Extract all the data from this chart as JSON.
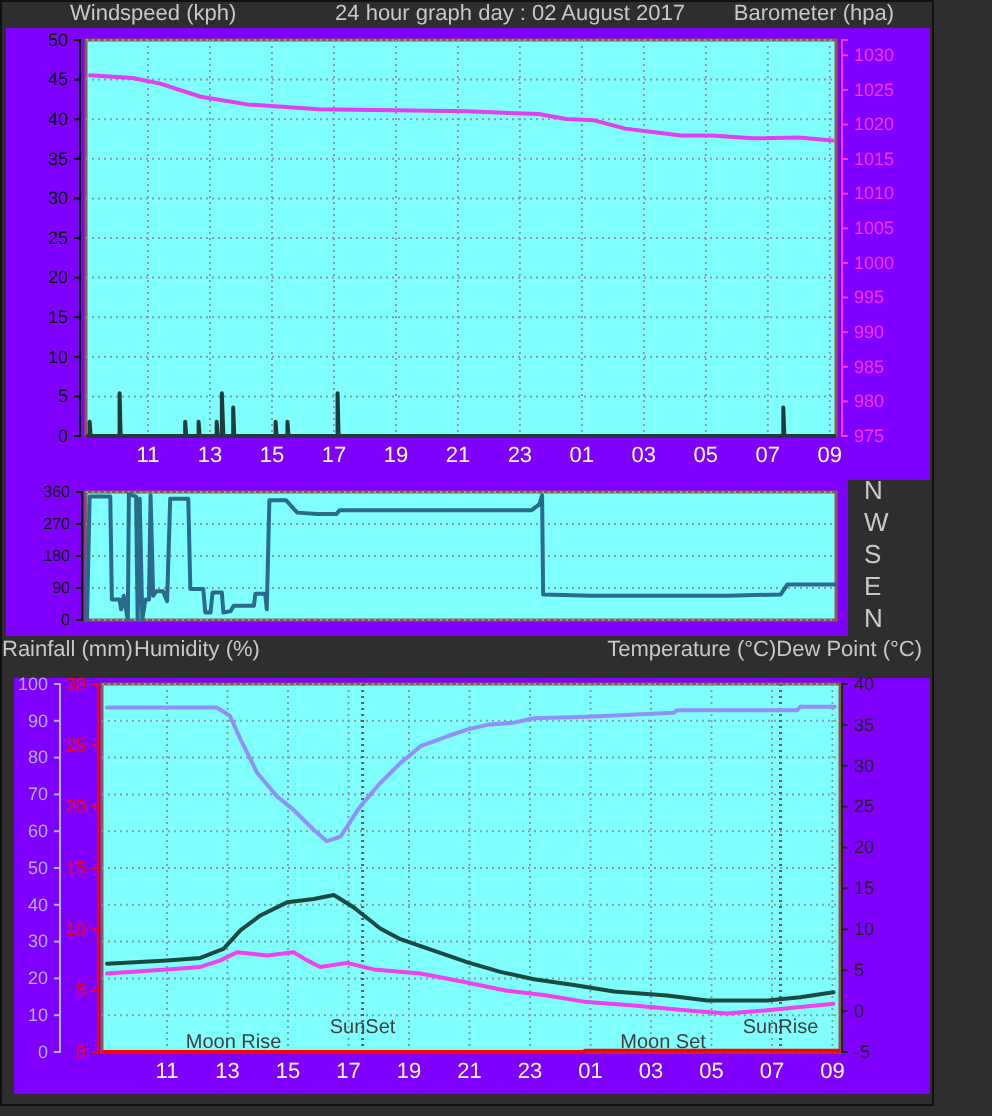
{
  "chart_data": [
    {
      "type": "line",
      "title": "24 hour graph day : 02 August 2017",
      "ylabel": "Windspeed (kph)",
      "y2label": "Barometer (hpa)",
      "xlim": [
        "2017-08-02T09:00",
        "2017-08-03T09:12"
      ],
      "xticks": [
        {
          "value": "2017-08-02T11:00",
          "label": "11"
        },
        {
          "value": "2017-08-02T13:00",
          "label": "13"
        },
        {
          "value": "2017-08-02T15:00",
          "label": "15"
        },
        {
          "value": "2017-08-02T17:00",
          "label": "17"
        },
        {
          "value": "2017-08-02T19:00",
          "label": "19"
        },
        {
          "value": "2017-08-02T21:00",
          "label": "21"
        },
        {
          "value": "2017-08-02T23:00",
          "label": "23"
        },
        {
          "value": "2017-08-03T01:00",
          "label": "01"
        },
        {
          "value": "2017-08-03T03:00",
          "label": "03"
        },
        {
          "value": "2017-08-03T05:00",
          "label": "05"
        },
        {
          "value": "2017-08-03T07:00",
          "label": "07"
        },
        {
          "value": "2017-08-03T09:00",
          "label": "09"
        }
      ],
      "ylim": [
        0,
        50
      ],
      "yticks": [
        0,
        5,
        10,
        15,
        20,
        25,
        30,
        35,
        40,
        45,
        50
      ],
      "y2lim": [
        975,
        1032.2
      ],
      "y2ticks": [
        975,
        980,
        985,
        990,
        995,
        1000,
        1005,
        1010,
        1015,
        1020,
        1025,
        1030
      ],
      "grid": true,
      "series": [
        {
          "color": "#1e3c3c",
          "x": [
            "2017-08-02T09:03",
            "2017-08-02T09:07",
            "2017-08-02T09:07",
            "2017-08-02T09:09",
            "2017-08-02T10:05",
            "2017-08-02T10:05",
            "2017-08-02T10:07",
            "2017-08-02T12:12",
            "2017-08-02T12:12",
            "2017-08-02T12:14",
            "2017-08-02T12:38",
            "2017-08-02T12:38",
            "2017-08-02T12:40",
            "2017-08-02T13:13",
            "2017-08-02T13:13",
            "2017-08-02T13:15",
            "2017-08-02T13:23",
            "2017-08-02T13:23",
            "2017-08-02T13:26",
            "2017-08-02T13:45",
            "2017-08-02T13:45",
            "2017-08-02T13:47",
            "2017-08-02T15:07",
            "2017-08-02T15:07",
            "2017-08-02T15:09",
            "2017-08-02T15:30",
            "2017-08-02T15:30",
            "2017-08-02T15:32",
            "2017-08-02T17:07",
            "2017-08-02T17:07",
            "2017-08-02T17:09",
            "2017-08-03T07:30",
            "2017-08-03T07:30",
            "2017-08-03T07:32",
            "2017-08-03T09:09"
          ],
          "values": [
            0,
            0,
            1.8,
            0,
            0,
            5.4,
            0,
            0,
            1.8,
            0,
            0,
            1.8,
            0,
            0,
            1.8,
            0,
            0,
            5.4,
            0,
            0,
            3.6,
            0,
            0,
            1.8,
            0,
            0,
            1.8,
            0,
            0,
            5.4,
            0,
            0,
            3.6,
            0,
            0
          ]
        },
        {
          "color": "#e040f0",
          "axis": "y2",
          "x": [
            "2017-08-02T09:08",
            "2017-08-02T10:30",
            "2017-08-02T11:24",
            "2017-08-02T12:42",
            "2017-08-02T14:12",
            "2017-08-02T16:30",
            "2017-08-02T21:18",
            "2017-08-02T23:36",
            "2017-08-03T00:30",
            "2017-08-03T01:24",
            "2017-08-03T02:24",
            "2017-08-03T04:12",
            "2017-08-03T05:12",
            "2017-08-03T06:30",
            "2017-08-03T08:00",
            "2017-08-03T09:06"
          ],
          "values": [
            1027.1,
            1026.7,
            1025.9,
            1024.0,
            1022.9,
            1022.2,
            1021.9,
            1021.5,
            1020.8,
            1020.6,
            1019.4,
            1018.4,
            1018.4,
            1018.0,
            1018.1,
            1017.7
          ]
        }
      ]
    },
    {
      "type": "line",
      "xlim": [
        "2017-08-02T09:00",
        "2017-08-03T09:12"
      ],
      "ylim": [
        0,
        360
      ],
      "yticks": [
        0,
        90,
        180,
        270,
        360
      ],
      "y2_categories": [
        "N",
        "W",
        "S",
        "E",
        "N"
      ],
      "tick_labels": "y",
      "grid": "y",
      "series": [
        {
          "color": "#2a6a8c",
          "x": [
            "2017-08-02T09:02",
            "2017-08-02T09:07",
            "2017-08-02T09:47",
            "2017-08-02T09:50",
            "2017-08-02T10:05",
            "2017-08-02T10:08",
            "2017-08-02T10:13",
            "2017-08-02T10:21",
            "2017-08-02T10:23",
            "2017-08-02T10:37",
            "2017-08-02T10:40",
            "2017-08-02T10:44",
            "2017-08-02T10:49",
            "2017-08-02T10:55",
            "2017-08-02T11:02",
            "2017-08-02T11:05",
            "2017-08-02T11:10",
            "2017-08-02T11:16",
            "2017-08-02T11:29",
            "2017-08-02T11:37",
            "2017-08-02T11:43",
            "2017-08-02T12:18",
            "2017-08-02T12:22",
            "2017-08-02T12:47",
            "2017-08-02T12:51",
            "2017-08-02T13:01",
            "2017-08-02T13:05",
            "2017-08-02T13:23",
            "2017-08-02T13:26",
            "2017-08-02T13:40",
            "2017-08-02T13:46",
            "2017-08-02T14:25",
            "2017-08-02T14:28",
            "2017-08-02T14:47",
            "2017-08-02T14:50",
            "2017-08-02T14:55",
            "2017-08-02T15:27",
            "2017-08-02T15:49",
            "2017-08-02T16:28",
            "2017-08-02T17:05",
            "2017-08-02T17:11",
            "2017-08-02T20:59",
            "2017-08-02T23:23",
            "2017-08-02T23:38",
            "2017-08-02T23:43",
            "2017-08-02T23:45",
            "2017-08-03T01:20",
            "2017-08-03T03:31",
            "2017-08-03T05:41",
            "2017-08-03T07:25",
            "2017-08-03T07:38",
            "2017-08-03T09:12"
          ],
          "values": [
            0,
            347,
            347,
            58,
            58,
            30,
            68,
            0,
            354,
            347,
            0,
            341,
            0,
            58,
            58,
            351,
            68,
            81,
            81,
            53,
            341,
            341,
            87,
            87,
            21,
            21,
            77,
            77,
            21,
            25,
            40,
            40,
            74,
            74,
            30,
            337,
            337,
            302,
            298,
            298,
            309,
            309,
            309,
            326,
            351,
            72,
            68,
            68,
            68,
            72,
            100,
            100
          ]
        }
      ]
    },
    {
      "type": "line",
      "ylabel": "Humidity (%)",
      "y3label": "Rainfall (mm)",
      "y2label": "Temperature (°C)Dew Point (°C)",
      "xlim": [
        "2017-08-02T08:51",
        "2017-08-03T09:15"
      ],
      "xticks": [
        {
          "value": "2017-08-02T11:00",
          "label": "11"
        },
        {
          "value": "2017-08-02T13:00",
          "label": "13"
        },
        {
          "value": "2017-08-02T15:00",
          "label": "15"
        },
        {
          "value": "2017-08-02T17:00",
          "label": "17"
        },
        {
          "value": "2017-08-02T19:00",
          "label": "19"
        },
        {
          "value": "2017-08-02T21:00",
          "label": "21"
        },
        {
          "value": "2017-08-02T23:00",
          "label": "23"
        },
        {
          "value": "2017-08-03T01:00",
          "label": "01"
        },
        {
          "value": "2017-08-03T03:00",
          "label": "03"
        },
        {
          "value": "2017-08-03T05:00",
          "label": "05"
        },
        {
          "value": "2017-08-03T07:00",
          "label": "07"
        },
        {
          "value": "2017-08-03T09:00",
          "label": "09"
        }
      ],
      "ylim": [
        0,
        100
      ],
      "yticks": [
        0,
        10,
        20,
        30,
        40,
        50,
        60,
        70,
        80,
        90,
        100
      ],
      "y2lim": [
        -5,
        40
      ],
      "y2ticks": [
        -5,
        0,
        5,
        10,
        15,
        20,
        25,
        30,
        35,
        40
      ],
      "y3lim": [
        0,
        30
      ],
      "y3ticks": [
        0,
        5,
        10,
        15,
        20,
        25,
        30
      ],
      "grid": true,
      "ref_lines": [
        {
          "axis": "x",
          "value": "2017-08-02T17:28",
          "label": "SunSet",
          "color": "#606060",
          "line_style": "dotted"
        },
        {
          "axis": "x",
          "value": "2017-08-03T07:17",
          "label": "SunRise",
          "color": "#606060",
          "line_style": "dotted"
        }
      ],
      "annotations": [
        {
          "text": "Moon Rise",
          "x": "2017-08-02T13:12",
          "y": 2.5
        },
        {
          "text": "Moon Set",
          "x": "2017-08-03T03:24",
          "y": 2.5
        }
      ],
      "series": [
        {
          "color": "#9090f8",
          "x": [
            "2017-08-02T09:01",
            "2017-08-02T12:39",
            "2017-08-02T13:05",
            "2017-08-02T13:26",
            "2017-08-02T13:59",
            "2017-08-02T14:38",
            "2017-08-02T15:11",
            "2017-08-02T15:51",
            "2017-08-02T16:17",
            "2017-08-02T16:44",
            "2017-08-02T17:23",
            "2017-08-02T18:03",
            "2017-08-02T18:43",
            "2017-08-02T19:23",
            "2017-08-02T20:16",
            "2017-08-02T20:55",
            "2017-08-02T21:35",
            "2017-08-02T22:28",
            "2017-08-02T23:08",
            "2017-08-03T00:53",
            "2017-08-03T03:45",
            "2017-08-03T03:52",
            "2017-08-03T07:50",
            "2017-08-03T07:56",
            "2017-08-03T09:05"
          ],
          "values": [
            93.6,
            93.6,
            91.3,
            84.9,
            75.8,
            69.5,
            65.8,
            60.4,
            57.3,
            58.5,
            66.7,
            73.1,
            78.5,
            83.1,
            85.8,
            87.6,
            88.9,
            89.5,
            90.7,
            91.1,
            92.2,
            92.9,
            92.9,
            93.8,
            93.8
          ]
        },
        {
          "color": "#1a4a40",
          "axis": "y2",
          "x": [
            "2017-08-02T09:01",
            "2017-08-02T11:00",
            "2017-08-02T12:06",
            "2017-08-02T12:52",
            "2017-08-02T13:26",
            "2017-08-02T14:05",
            "2017-08-02T14:58",
            "2017-08-02T15:51",
            "2017-08-02T16:31",
            "2017-08-02T17:10",
            "2017-08-02T18:03",
            "2017-08-02T18:43",
            "2017-08-02T19:49",
            "2017-08-02T20:55",
            "2017-08-02T22:01",
            "2017-08-02T23:08",
            "2017-08-03T00:27",
            "2017-08-03T01:47",
            "2017-08-03T03:32",
            "2017-08-03T04:52",
            "2017-08-03T06:51",
            "2017-08-03T07:56",
            "2017-08-03T09:02"
          ],
          "values": [
            5.8,
            6.2,
            6.5,
            7.6,
            9.9,
            11.7,
            13.3,
            13.7,
            14.2,
            12.7,
            10.1,
            8.8,
            7.4,
            6.0,
            4.8,
            3.9,
            3.2,
            2.4,
            1.9,
            1.3,
            1.3,
            1.7,
            2.3
          ]
        },
        {
          "color": "#f040f0",
          "axis": "y2",
          "x": [
            "2017-08-02T09:01",
            "2017-08-02T11:00",
            "2017-08-02T12:06",
            "2017-08-02T12:46",
            "2017-08-02T13:19",
            "2017-08-02T14:19",
            "2017-08-02T15:11",
            "2017-08-02T15:38",
            "2017-08-02T16:04",
            "2017-08-02T16:57",
            "2017-08-02T17:50",
            "2017-08-02T19:23",
            "2017-08-02T20:55",
            "2017-08-02T22:14",
            "2017-08-02T23:34",
            "2017-08-03T00:53",
            "2017-08-03T02:26",
            "2017-08-03T04:25",
            "2017-08-03T05:31",
            "2017-08-03T06:51",
            "2017-08-03T09:02"
          ],
          "values": [
            4.6,
            5.1,
            5.4,
            6.2,
            7.2,
            6.8,
            7.2,
            6.2,
            5.4,
            5.9,
            5.1,
            4.6,
            3.5,
            2.5,
            1.9,
            1.1,
            0.7,
            0,
            -0.3,
            0.1,
            0.9
          ]
        },
        {
          "color": "#ff0000",
          "axis": "y3",
          "x": [
            "2017-08-02T08:54",
            "2017-08-03T00:47",
            "2017-08-03T00:49",
            "2017-08-03T09:12"
          ],
          "values": [
            0,
            0,
            0.1,
            0.1
          ]
        }
      ]
    }
  ]
}
